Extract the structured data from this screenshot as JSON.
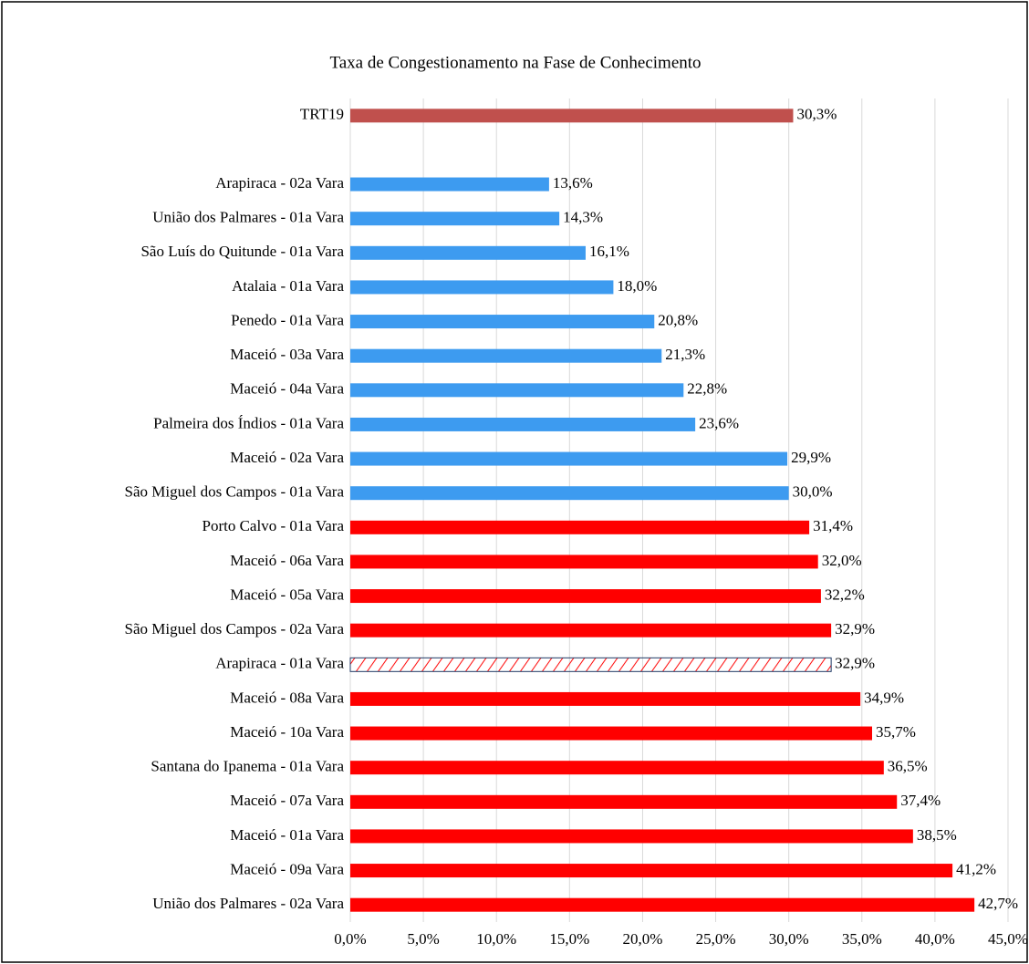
{
  "chart_data": {
    "type": "bar",
    "orientation": "horizontal",
    "title": "Taxa de Congestionamento na Fase de Conhecimento",
    "categories": [
      "TRT19",
      null,
      "Arapiraca - 02a Vara",
      "União dos Palmares - 01a Vara",
      "São Luís do Quitunde - 01a Vara",
      "Atalaia - 01a Vara",
      "Penedo - 01a Vara",
      "Maceió - 03a Vara",
      "Maceió - 04a Vara",
      "Palmeira dos Índios - 01a Vara",
      "Maceió - 02a Vara",
      "São Miguel dos Campos - 01a Vara",
      "Porto Calvo - 01a Vara",
      "Maceió - 06a Vara",
      "Maceió - 05a Vara",
      "São Miguel dos Campos - 02a Vara",
      "Arapiraca - 01a Vara",
      "Maceió - 08a Vara",
      "Maceió - 10a Vara",
      "Santana do Ipanema - 01a Vara",
      "Maceió - 07a Vara",
      "Maceió - 01a Vara",
      "Maceió - 09a Vara",
      "União dos Palmares - 02a Vara"
    ],
    "values": [
      30.3,
      null,
      13.6,
      14.3,
      16.1,
      18.0,
      20.8,
      21.3,
      22.8,
      23.6,
      29.9,
      30.0,
      31.4,
      32.0,
      32.2,
      32.9,
      32.9,
      34.9,
      35.7,
      36.5,
      37.4,
      38.5,
      41.2,
      42.7
    ],
    "value_labels": [
      "30,3%",
      null,
      "13,6%",
      "14,3%",
      "16,1%",
      "18,0%",
      "20,8%",
      "21,3%",
      "22,8%",
      "23,6%",
      "29,9%",
      "30,0%",
      "31,4%",
      "32,0%",
      "32,2%",
      "32,9%",
      "32,9%",
      "34,9%",
      "35,7%",
      "36,5%",
      "37,4%",
      "38,5%",
      "41,2%",
      "42,7%"
    ],
    "colors": [
      "#c0504d",
      null,
      "#3d9bf0",
      "#3d9bf0",
      "#3d9bf0",
      "#3d9bf0",
      "#3d9bf0",
      "#3d9bf0",
      "#3d9bf0",
      "#3d9bf0",
      "#3d9bf0",
      "#3d9bf0",
      "#ff0000",
      "#ff0000",
      "#ff0000",
      "#ff0000",
      "#ff0000",
      "#ff0000",
      "#ff0000",
      "#ff0000",
      "#ff0000",
      "#ff0000",
      "#ff0000",
      "#ff0000"
    ],
    "hatched": [
      16
    ],
    "xlim": [
      0,
      45
    ],
    "xticks": [
      {
        "value": 0,
        "label": "0,0%"
      },
      {
        "value": 5,
        "label": "5,0%"
      },
      {
        "value": 10,
        "label": "10,0%"
      },
      {
        "value": 15,
        "label": "15,0%"
      },
      {
        "value": 20,
        "label": "20,0%"
      },
      {
        "value": 25,
        "label": "25,0%"
      },
      {
        "value": 30,
        "label": "30,0%"
      },
      {
        "value": 35,
        "label": "35,0%"
      },
      {
        "value": 40,
        "label": "40,0%"
      },
      {
        "value": 45,
        "label": "45,0%"
      }
    ],
    "grid": true
  }
}
